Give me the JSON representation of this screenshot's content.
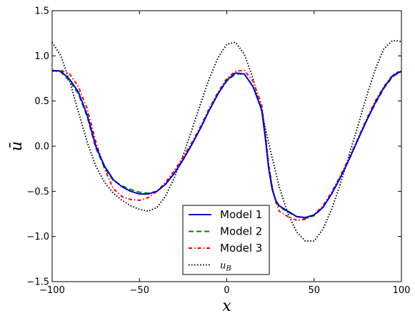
{
  "chart_data": {
    "type": "line",
    "xlabel": "x",
    "ylabel": "ū",
    "xlim": [
      -100,
      100
    ],
    "ylim": [
      -1.5,
      1.5
    ],
    "xticks": [
      -100,
      -50,
      0,
      50,
      100
    ],
    "yticks": [
      -1.5,
      -1.0,
      -0.5,
      0.0,
      0.5,
      1.0,
      1.5
    ],
    "xtick_labels": [
      "−100",
      "−50",
      "0",
      "50",
      "100"
    ],
    "ytick_labels": [
      "−1.5",
      "−1.0",
      "−0.5",
      "0.0",
      "0.5",
      "1.0",
      "1.5"
    ],
    "grid": false,
    "legend_position": "lower-center",
    "series": [
      {
        "name": "Model 1",
        "color": "#0000cc",
        "style": "solid",
        "x": [
          -100,
          -95,
          -90,
          -85,
          -80,
          -75,
          -70,
          -65,
          -60,
          -55,
          -50,
          -45,
          -40,
          -35,
          -30,
          -25,
          -20,
          -15,
          -10,
          -5,
          0,
          5,
          10,
          15,
          20,
          22,
          24,
          26,
          28,
          30,
          35,
          40,
          45,
          50,
          55,
          60,
          65,
          70,
          75,
          80,
          85,
          90,
          95,
          100
        ],
        "y": [
          0.84,
          0.83,
          0.74,
          0.6,
          0.35,
          0.0,
          -0.22,
          -0.37,
          -0.45,
          -0.5,
          -0.53,
          -0.53,
          -0.5,
          -0.42,
          -0.3,
          -0.15,
          0.02,
          0.2,
          0.4,
          0.58,
          0.73,
          0.81,
          0.8,
          0.66,
          0.4,
          0.1,
          -0.25,
          -0.48,
          -0.6,
          -0.66,
          -0.72,
          -0.78,
          -0.79,
          -0.76,
          -0.68,
          -0.53,
          -0.35,
          -0.15,
          0.07,
          0.28,
          0.48,
          0.65,
          0.78,
          0.83
        ]
      },
      {
        "name": "Model 2",
        "color": "#008800",
        "style": "dashed",
        "x": [
          -100,
          -95,
          -90,
          -85,
          -80,
          -75,
          -70,
          -65,
          -60,
          -55,
          -50,
          -45,
          -40,
          -35,
          -30,
          -25,
          -20,
          -15,
          -10,
          -5,
          0,
          5,
          10,
          15,
          20,
          22,
          24,
          26,
          28,
          30,
          35,
          40,
          45,
          50,
          55,
          60,
          65,
          70,
          75,
          80,
          85,
          90,
          95,
          100
        ],
        "y": [
          0.84,
          0.82,
          0.72,
          0.58,
          0.33,
          -0.02,
          -0.24,
          -0.38,
          -0.44,
          -0.48,
          -0.51,
          -0.52,
          -0.5,
          -0.42,
          -0.3,
          -0.15,
          0.02,
          0.2,
          0.4,
          0.58,
          0.72,
          0.8,
          0.8,
          0.66,
          0.42,
          0.12,
          -0.22,
          -0.46,
          -0.6,
          -0.67,
          -0.73,
          -0.78,
          -0.8,
          -0.77,
          -0.68,
          -0.53,
          -0.35,
          -0.15,
          0.07,
          0.28,
          0.47,
          0.64,
          0.77,
          0.83
        ]
      },
      {
        "name": "Model 3",
        "color": "#ff0000",
        "style": "dashdot",
        "x": [
          -100,
          -95,
          -90,
          -85,
          -80,
          -75,
          -70,
          -65,
          -60,
          -55,
          -50,
          -45,
          -40,
          -35,
          -30,
          -25,
          -20,
          -15,
          -10,
          -5,
          0,
          5,
          10,
          15,
          20,
          22,
          24,
          26,
          28,
          30,
          35,
          40,
          45,
          50,
          55,
          60,
          65,
          70,
          75,
          80,
          85,
          90,
          95,
          100
        ],
        "y": [
          0.83,
          0.84,
          0.8,
          0.66,
          0.42,
          0.05,
          -0.25,
          -0.47,
          -0.56,
          -0.59,
          -0.6,
          -0.57,
          -0.5,
          -0.4,
          -0.27,
          -0.12,
          0.04,
          0.22,
          0.42,
          0.6,
          0.75,
          0.83,
          0.84,
          0.72,
          0.46,
          0.15,
          -0.2,
          -0.45,
          -0.62,
          -0.72,
          -0.78,
          -0.82,
          -0.81,
          -0.76,
          -0.66,
          -0.51,
          -0.33,
          -0.13,
          0.08,
          0.3,
          0.5,
          0.66,
          0.79,
          0.84
        ]
      },
      {
        "name": "u_B",
        "color": "#000000",
        "style": "dotted",
        "x": [
          -100,
          -95,
          -90,
          -85,
          -80,
          -75,
          -70,
          -65,
          -60,
          -55,
          -50,
          -45,
          -40,
          -35,
          -30,
          -25,
          -20,
          -15,
          -10,
          -5,
          0,
          5,
          10,
          15,
          20,
          25,
          30,
          35,
          40,
          45,
          50,
          55,
          60,
          65,
          70,
          75,
          80,
          85,
          90,
          95,
          100
        ],
        "y": [
          1.15,
          1.0,
          0.72,
          0.38,
          0.05,
          -0.22,
          -0.4,
          -0.52,
          -0.6,
          -0.66,
          -0.7,
          -0.72,
          -0.68,
          -0.55,
          -0.35,
          -0.1,
          0.18,
          0.47,
          0.75,
          0.98,
          1.13,
          1.15,
          1.02,
          0.75,
          0.38,
          -0.05,
          -0.45,
          -0.75,
          -0.95,
          -1.05,
          -1.05,
          -0.92,
          -0.7,
          -0.42,
          -0.1,
          0.22,
          0.55,
          0.85,
          1.08,
          1.17,
          1.16
        ]
      }
    ],
    "legend": [
      {
        "label": "Model 1",
        "color": "#0000cc",
        "style": "solid"
      },
      {
        "label": "Model 2",
        "color": "#008800",
        "style": "dashed"
      },
      {
        "label": "Model 3",
        "color": "#ff0000",
        "style": "dashdot"
      },
      {
        "label": "u_B",
        "color": "#000000",
        "style": "dotted"
      }
    ]
  }
}
